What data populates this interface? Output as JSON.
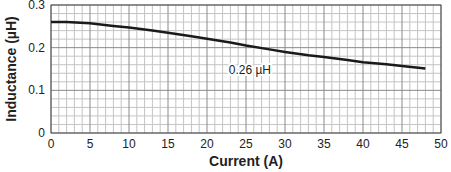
{
  "chart_data": {
    "type": "line",
    "x_label": "Current (A)",
    "y_label": "Inductance (µH)",
    "x": [
      0,
      2,
      5,
      8,
      10,
      13,
      15,
      18,
      20,
      23,
      25,
      28,
      30,
      33,
      35,
      38,
      40,
      43,
      45,
      48
    ],
    "series": [
      {
        "name": "Inductance",
        "color": "#1a1a1a",
        "values": [
          0.26,
          0.26,
          0.257,
          0.251,
          0.247,
          0.24,
          0.235,
          0.227,
          0.221,
          0.212,
          0.205,
          0.196,
          0.19,
          0.182,
          0.178,
          0.171,
          0.166,
          0.161,
          0.157,
          0.151
        ]
      }
    ],
    "xlim": [
      0,
      50
    ],
    "xticks": [
      0,
      5,
      10,
      15,
      20,
      25,
      30,
      35,
      40,
      45,
      50
    ],
    "ylim": [
      0,
      0.3
    ],
    "yticks": [
      0,
      0.1,
      0.2,
      0.3
    ],
    "grid": true,
    "annotations": [
      {
        "text": "0.26 µH",
        "x": 25.5,
        "y": 0.148
      }
    ]
  }
}
